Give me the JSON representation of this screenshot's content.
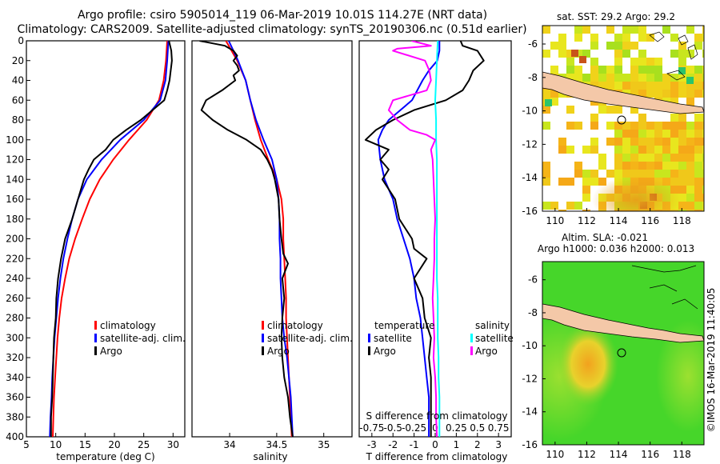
{
  "title_line1": "Argo profile: csiro 5905014_119 06-Mar-2019 10.01S 114.27E (NRT data)",
  "title_line2": "Climatology: CARS2009. Satellite-adjusted climatology: synTS_20190306.nc (0.51d earlier)",
  "watermark": "©IMOS 16-Mar-2019 11:40:05",
  "colors": {
    "climatology": "#ff0000",
    "satellite": "#0000ff",
    "argo": "#000000",
    "sat_salinity": "#00ffff",
    "argo_salinity": "#ff00ff"
  },
  "chart_data": [
    {
      "type": "line",
      "id": "temperature",
      "xlabel": "temperature (deg C)",
      "xlim": [
        5,
        32
      ],
      "xticks": [
        5,
        10,
        15,
        20,
        25,
        30
      ],
      "ylim": [
        400,
        0
      ],
      "yticks": [
        0,
        20,
        40,
        60,
        80,
        100,
        120,
        140,
        160,
        180,
        200,
        220,
        240,
        260,
        280,
        300,
        320,
        340,
        360,
        380,
        400
      ],
      "legend": [
        "climatology",
        "satellite-adj. clim.",
        "Argo"
      ],
      "series": [
        {
          "name": "climatology",
          "depth": [
            0,
            20,
            40,
            60,
            80,
            100,
            120,
            140,
            160,
            180,
            200,
            220,
            240,
            260,
            280,
            300,
            320,
            340,
            360,
            380,
            400
          ],
          "values": [
            29.0,
            28.8,
            28.4,
            27.6,
            25.5,
            22.5,
            19.8,
            17.5,
            15.8,
            14.5,
            13.3,
            12.3,
            11.6,
            11.0,
            10.6,
            10.3,
            10.1,
            9.9,
            9.7,
            9.6,
            9.5
          ]
        },
        {
          "name": "satellite-adj. clim.",
          "depth": [
            0,
            20,
            40,
            60,
            80,
            100,
            120,
            140,
            160,
            180,
            200,
            220,
            240,
            260,
            280,
            300,
            320,
            340,
            360,
            380,
            400
          ],
          "values": [
            29.2,
            29.0,
            28.7,
            27.8,
            25.0,
            21.0,
            17.8,
            15.3,
            13.8,
            12.8,
            12.0,
            11.3,
            10.8,
            10.4,
            10.1,
            9.8,
            9.6,
            9.4,
            9.3,
            9.1,
            9.0
          ]
        },
        {
          "name": "Argo",
          "depth": [
            0,
            10,
            20,
            30,
            40,
            50,
            60,
            70,
            80,
            90,
            100,
            110,
            120,
            130,
            140,
            160,
            180,
            200,
            220,
            240,
            260,
            280,
            300,
            320,
            340,
            360,
            380,
            400
          ],
          "values": [
            29.3,
            29.7,
            29.8,
            29.6,
            29.4,
            29.0,
            28.5,
            26.5,
            24.5,
            22.0,
            19.8,
            18.5,
            16.5,
            15.6,
            14.8,
            13.8,
            12.8,
            11.6,
            10.9,
            10.4,
            10.1,
            10.0,
            9.7,
            9.6,
            9.5,
            9.4,
            9.2,
            9.2
          ]
        }
      ]
    },
    {
      "type": "line",
      "id": "salinity",
      "xlabel": "salinity",
      "xlim": [
        33.6,
        35.3
      ],
      "xticks": [
        34,
        34.5,
        35
      ],
      "ylim": [
        400,
        0
      ],
      "legend": [
        "climatology",
        "satellite-adj. clim.",
        "Argo"
      ],
      "series": [
        {
          "name": "climatology",
          "depth": [
            0,
            20,
            40,
            60,
            80,
            100,
            120,
            140,
            160,
            180,
            200,
            220,
            240,
            260,
            280,
            300,
            320,
            340,
            360,
            380,
            400
          ],
          "values": [
            33.96,
            34.08,
            34.17,
            34.22,
            34.27,
            34.33,
            34.41,
            34.5,
            34.55,
            34.57,
            34.57,
            34.58,
            34.59,
            34.6,
            34.6,
            34.61,
            34.62,
            34.63,
            34.64,
            34.65,
            34.66
          ]
        },
        {
          "name": "satellite-adj. clim.",
          "depth": [
            0,
            20,
            40,
            60,
            80,
            100,
            120,
            140,
            160,
            180,
            200,
            220,
            240,
            260,
            280,
            300,
            320,
            340,
            360,
            380,
            400
          ],
          "values": [
            33.99,
            34.09,
            34.17,
            34.22,
            34.28,
            34.36,
            34.45,
            34.5,
            34.52,
            34.53,
            34.53,
            34.54,
            34.54,
            34.55,
            34.56,
            34.58,
            34.61,
            34.63,
            34.65,
            34.66,
            34.67
          ]
        },
        {
          "name": "Argo",
          "depth": [
            0,
            5,
            10,
            15,
            20,
            25,
            30,
            35,
            40,
            50,
            60,
            70,
            80,
            90,
            100,
            110,
            120,
            130,
            140,
            160,
            180,
            200,
            215,
            225,
            240,
            260,
            280,
            300,
            320,
            340,
            360,
            380,
            400
          ],
          "values": [
            33.68,
            33.95,
            34.04,
            34.08,
            34.04,
            34.08,
            34.1,
            34.04,
            34.06,
            33.92,
            33.75,
            33.7,
            33.82,
            33.98,
            34.18,
            34.33,
            34.4,
            34.45,
            34.48,
            34.52,
            34.53,
            34.55,
            34.57,
            34.62,
            34.56,
            34.58,
            34.56,
            34.55,
            34.56,
            34.58,
            34.62,
            34.64,
            34.67
          ]
        }
      ]
    },
    {
      "type": "line",
      "id": "difference",
      "xlabel": "T difference from climatology",
      "xlabel_top": "S difference from climatology",
      "xlim": [
        -3.6,
        3.6
      ],
      "xticks": [
        -3,
        -2,
        -1,
        0,
        1,
        2,
        3
      ],
      "sticks": [
        "-0.75",
        "-0.5",
        "-0.25",
        "0",
        "0.25",
        "0.5",
        "0.75"
      ],
      "ylim": [
        400,
        0
      ],
      "legend_temperature": {
        "title": "temperature",
        "items": [
          "satellite",
          "Argo"
        ]
      },
      "legend_salinity": {
        "title": "salinity",
        "items": [
          "satellite",
          "Argo"
        ]
      },
      "series": [
        {
          "name": "temperature satellite",
          "depth": [
            0,
            10,
            20,
            30,
            40,
            60,
            80,
            90,
            100,
            120,
            140,
            160,
            180,
            200,
            220,
            240,
            260,
            280,
            300,
            320,
            340,
            360,
            380,
            400
          ],
          "values": [
            0.2,
            0.2,
            0.1,
            -0.3,
            -0.6,
            -1.1,
            -2.2,
            -2.5,
            -2.7,
            -2.6,
            -2.4,
            -2.0,
            -1.8,
            -1.5,
            -1.2,
            -1.0,
            -0.9,
            -0.7,
            -0.6,
            -0.5,
            -0.4,
            -0.3,
            -0.3,
            -0.3
          ]
        },
        {
          "name": "temperature Argo",
          "depth": [
            0,
            5,
            10,
            20,
            30,
            40,
            50,
            60,
            70,
            80,
            90,
            100,
            110,
            120,
            130,
            140,
            160,
            180,
            200,
            210,
            220,
            240,
            260,
            280,
            300,
            320,
            340,
            360,
            380,
            400
          ],
          "values": [
            1.2,
            1.3,
            2.0,
            2.3,
            1.8,
            1.6,
            1.3,
            0.5,
            -1.0,
            -2.0,
            -2.8,
            -3.3,
            -2.2,
            -2.6,
            -2.2,
            -2.5,
            -1.9,
            -1.7,
            -1.1,
            -1.0,
            -0.4,
            -1.0,
            -0.6,
            -0.5,
            -0.2,
            -0.3,
            -0.2,
            -0.2,
            -0.2,
            -0.2
          ]
        },
        {
          "name": "salinity satellite",
          "depth": [
            0,
            20,
            40,
            60,
            80,
            100,
            120,
            140,
            160,
            180,
            200,
            220,
            240,
            260,
            280,
            300,
            320,
            340,
            360,
            380,
            400
          ],
          "values": [
            0.03,
            0.02,
            0.01,
            0.0,
            0.01,
            0.01,
            0.02,
            0.02,
            0.02,
            0.02,
            0.02,
            0.02,
            0.02,
            0.03,
            0.03,
            0.03,
            0.04,
            0.04,
            0.05,
            0.05,
            0.05
          ]
        },
        {
          "name": "salinity Argo",
          "depth": [
            0,
            5,
            8,
            10,
            20,
            30,
            40,
            50,
            60,
            70,
            80,
            90,
            95,
            100,
            110,
            120,
            140,
            160,
            180,
            200,
            220,
            240,
            260,
            280,
            300,
            320,
            340,
            360,
            380,
            400
          ],
          "values": [
            -0.28,
            -0.05,
            -0.45,
            -0.5,
            -0.12,
            -0.07,
            -0.05,
            -0.1,
            -0.5,
            -0.55,
            -0.45,
            -0.3,
            -0.1,
            0.0,
            -0.05,
            -0.03,
            -0.02,
            -0.01,
            0.0,
            -0.01,
            -0.01,
            -0.02,
            -0.03,
            -0.02,
            -0.01,
            -0.02,
            0.0,
            0.01,
            0.01,
            0.02
          ]
        }
      ]
    },
    {
      "type": "heatmap",
      "id": "sst_map",
      "title": "sat. SST: 29.2 Argo: 29.2",
      "xlim": [
        109.2,
        119.4
      ],
      "ylim": [
        -16,
        -4.9
      ],
      "xticks": [
        110,
        112,
        114,
        116,
        118
      ],
      "yticks": [
        -6,
        -8,
        -10,
        -12,
        -14,
        -16
      ],
      "argo_position": {
        "lon": 114.27,
        "lat": -10.01
      }
    },
    {
      "type": "heatmap",
      "id": "sla_map",
      "title_line1": "Altim. SLA: -0.021",
      "title_line2": "Argo h1000: 0.036 h2000: 0.013",
      "xlim": [
        109.2,
        119.4
      ],
      "ylim": [
        -16,
        -4.9
      ],
      "xticks": [
        110,
        112,
        114,
        116,
        118
      ],
      "yticks": [
        -6,
        -8,
        -10,
        -12,
        -14,
        -16
      ],
      "argo_position": {
        "lon": 114.27,
        "lat": -10.01
      }
    }
  ]
}
